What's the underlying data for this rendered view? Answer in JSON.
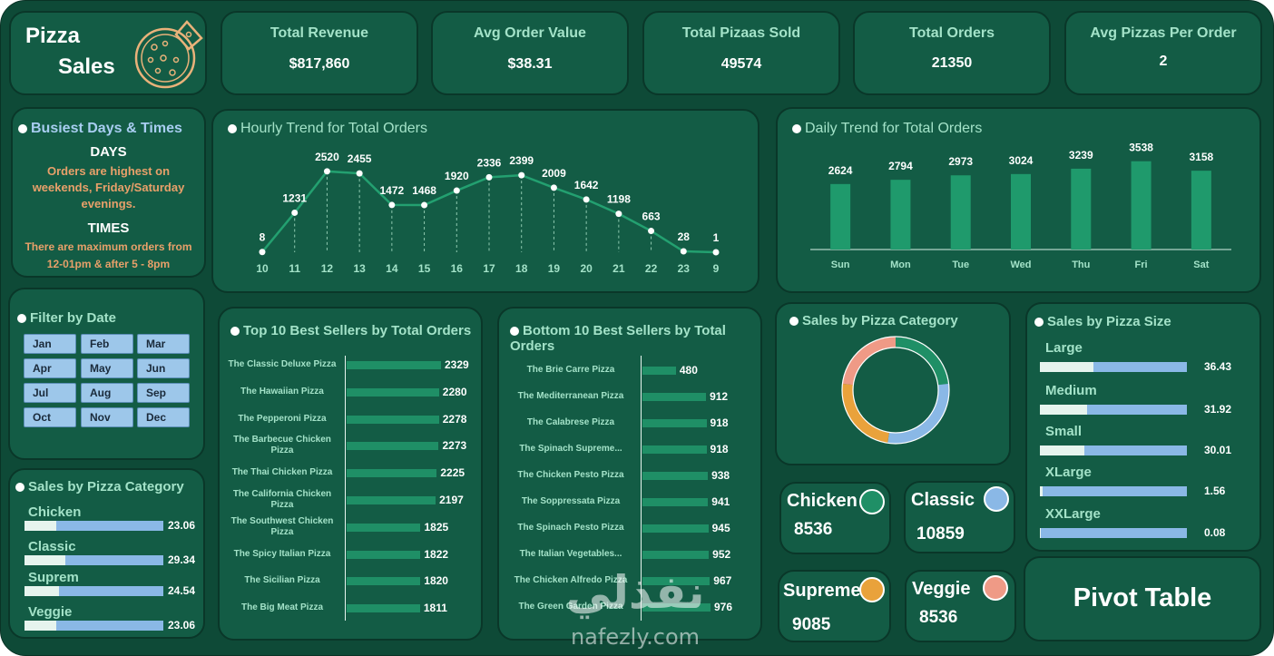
{
  "header": {
    "title_line1": "Pizza",
    "title_line2": "Sales",
    "logo_icon": "pizza-icon"
  },
  "kpis": [
    {
      "title": "Total Revenue",
      "value": "$817,860"
    },
    {
      "title": "Avg Order Value",
      "value": "$38.31"
    },
    {
      "title": "Total Pizaas Sold",
      "value": "49574"
    },
    {
      "title": "Total Orders",
      "value": "21350"
    },
    {
      "title": "Avg Pizzas Per Order",
      "value": "2"
    }
  ],
  "busiest": {
    "title": "Busiest Days & Times",
    "days_heading": "DAYS",
    "days_text": "Orders are highest on weekends, Friday/Saturday evenings.",
    "times_heading": "TIMES",
    "times_text": "There are maximum orders from 12-01pm & after 5 - 8pm"
  },
  "filter": {
    "title": "Filter by Date",
    "months": [
      "Jan",
      "Feb",
      "Mar",
      "Apr",
      "May",
      "Jun",
      "Jul",
      "Aug",
      "Sep",
      "Oct",
      "Nov",
      "Dec"
    ]
  },
  "category_left": {
    "title": "Sales by Pizza Category",
    "items": [
      {
        "label": "Chicken",
        "value": "23.06",
        "fill_pct": 23.06
      },
      {
        "label": "Classic",
        "value": "29.34",
        "fill_pct": 29.34
      },
      {
        "label": "Suprem",
        "value": "24.54",
        "fill_pct": 24.54
      },
      {
        "label": "Veggie",
        "value": "23.06",
        "fill_pct": 23.06
      }
    ]
  },
  "colors": {
    "accent": "#1f8f66",
    "blue": "#8ab8e6",
    "orange": "#e9a23b",
    "salmon": "#ef9a86",
    "green_light": "#a3e2c8"
  },
  "chart_data": [
    {
      "type": "line",
      "title": "Hourly Trend for Total Orders",
      "x": [
        "10",
        "11",
        "12",
        "13",
        "14",
        "15",
        "16",
        "17",
        "18",
        "19",
        "20",
        "21",
        "22",
        "23",
        "9"
      ],
      "values": [
        8,
        1231,
        2520,
        2455,
        1472,
        1468,
        1920,
        2336,
        2399,
        2009,
        1642,
        1198,
        663,
        28,
        1
      ],
      "ylim": [
        0,
        2600
      ]
    },
    {
      "type": "bar",
      "title": "Daily Trend for Total Orders",
      "categories": [
        "Sun",
        "Mon",
        "Tue",
        "Wed",
        "Thu",
        "Fri",
        "Sat"
      ],
      "values": [
        2624,
        2794,
        2973,
        3024,
        3239,
        3538,
        3158
      ],
      "ylim": [
        0,
        3600
      ]
    },
    {
      "type": "bar",
      "title": "Top 10 Best Sellers by Total Orders",
      "categories": [
        "The Classic Deluxe Pizza",
        "The Hawaiian Pizza",
        "The Pepperoni Pizza",
        "The Barbecue Chicken Pizza",
        "The Thai Chicken Pizza",
        "The California Chicken Pizza",
        "The Southwest Chicken Pizza",
        "The Spicy Italian Pizza",
        "The Sicilian Pizza",
        "The Big Meat Pizza"
      ],
      "values": [
        2329,
        2280,
        2278,
        2273,
        2225,
        2197,
        1825,
        1822,
        1820,
        1811
      ]
    },
    {
      "type": "bar",
      "title": "Bottom 10 Best Sellers by Total Orders",
      "categories": [
        "The Brie Carre Pizza",
        "The Mediterranean Pizza",
        "The Calabrese Pizza",
        "The Spinach Supreme...",
        "The Chicken Pesto Pizza",
        "The Soppressata Pizza",
        "The Spinach Pesto Pizza",
        "The Italian Vegetables...",
        "The Chicken Alfredo Pizza",
        "The Green Garden Pizza"
      ],
      "values": [
        480,
        912,
        918,
        918,
        938,
        941,
        945,
        952,
        967,
        976
      ]
    },
    {
      "type": "pie",
      "title": "Sales by Pizza Category",
      "categories": [
        "Chicken",
        "Classic",
        "Supreme",
        "Veggie"
      ],
      "values": [
        8536,
        10859,
        9085,
        8536
      ]
    },
    {
      "type": "bar",
      "title": "Sales by Pizza Size",
      "categories": [
        "Large",
        "Medium",
        "Small",
        "XLarge",
        "XXLarge"
      ],
      "values": [
        36.43,
        31.92,
        30.01,
        1.56,
        0.08
      ]
    }
  ],
  "legend_cards": [
    {
      "name": "Chicken",
      "value": "8536",
      "color": "#1f8f66"
    },
    {
      "name": "Classic",
      "value": "10859",
      "color": "#8ab8e6"
    },
    {
      "name": "Supreme",
      "value": "9085",
      "color": "#e9a23b"
    },
    {
      "name": "Veggie",
      "value": "8536",
      "color": "#ef9a86"
    }
  ],
  "pivot": {
    "label": "Pivot Table"
  },
  "watermark": {
    "text": "نفذلي",
    "subtext": "nafezly.com"
  }
}
